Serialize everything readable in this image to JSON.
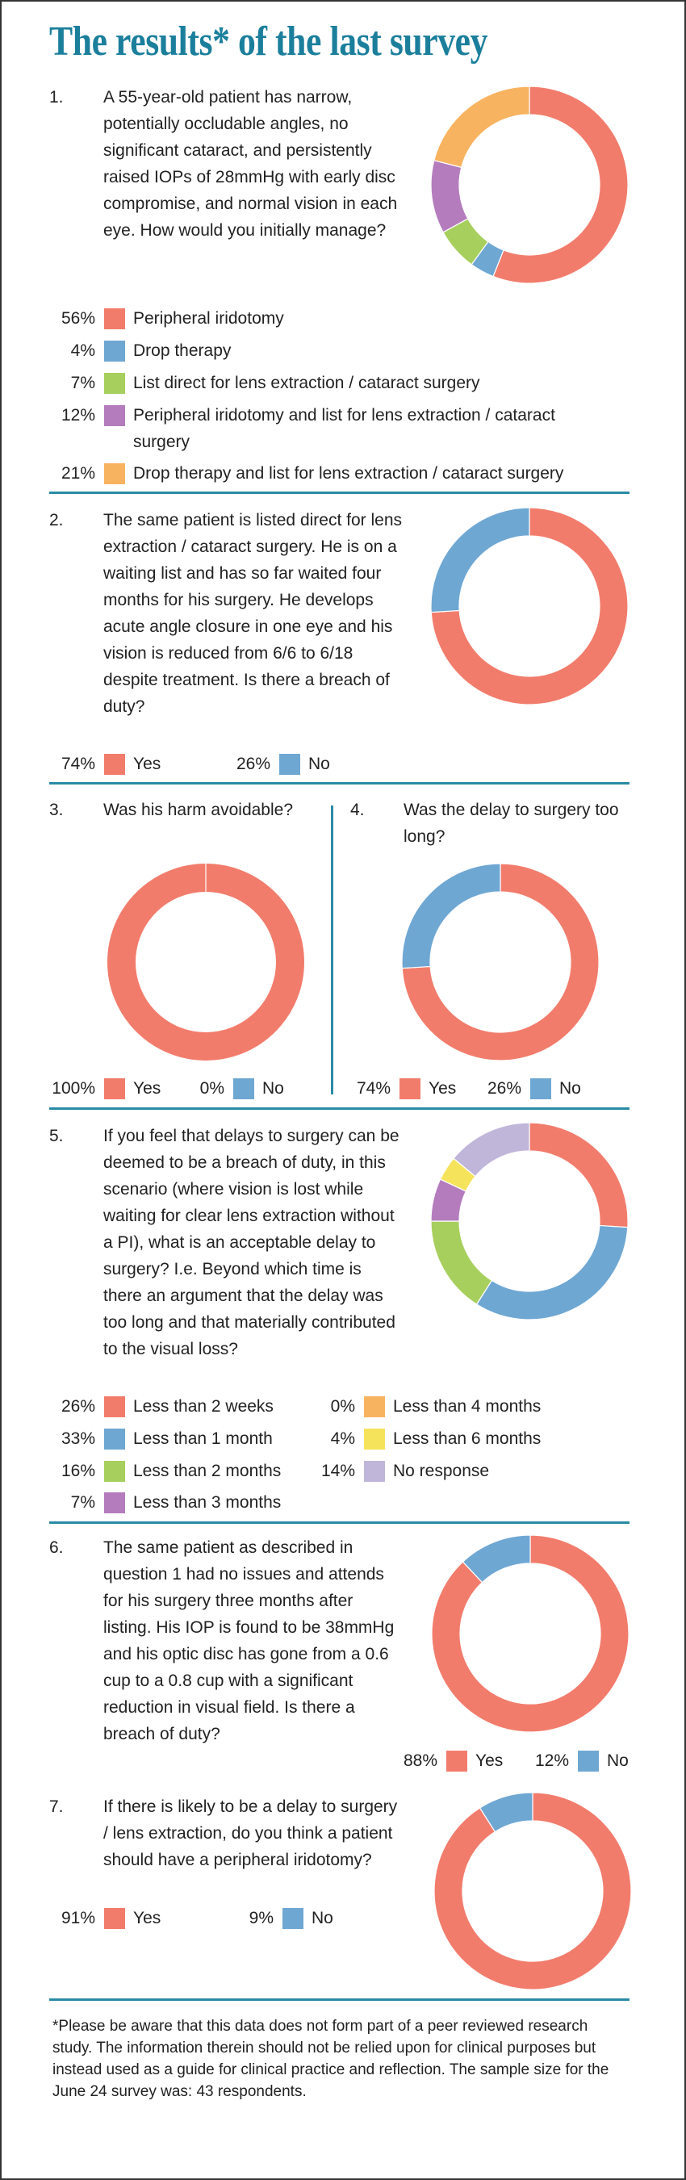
{
  "title": "The results* of the last survey",
  "chart_data": [
    {
      "type": "pie",
      "number": "1.",
      "title": "A 55-year-old patient has narrow, potentially occludable angles, no significant cataract, and persistently raised IOPs of 28mmHg with early disc compromise, and normal vision in each eye. How would you initially manage?",
      "categories": [
        "Peripheral iridotomy",
        "Drop therapy",
        "List direct for lens extraction / cataract surgery",
        "Peripheral iridotomy and list for lens extraction / cataract surgery",
        "Drop therapy and list for lens extraction / cataract surgery"
      ],
      "values": [
        56,
        4,
        7,
        12,
        21
      ],
      "value_labels": [
        "56%",
        "4%",
        "7%",
        "12%",
        "21%"
      ],
      "colors": [
        "#f27c6c",
        "#6fa7d3",
        "#a7cf5e",
        "#b47cbd",
        "#f8b360"
      ]
    },
    {
      "type": "pie",
      "number": "2.",
      "title": "The same patient is listed direct for lens extraction / cataract surgery. He is on a waiting list and has so far waited four months for his surgery. He develops acute angle closure in one eye and his vision is reduced from 6/6 to 6/18 despite treatment. Is there a breach of duty?",
      "categories": [
        "Yes",
        "No"
      ],
      "values": [
        74,
        26
      ],
      "value_labels": [
        "74%",
        "26%"
      ],
      "colors": [
        "#f27c6c",
        "#6fa7d3"
      ]
    },
    {
      "type": "pie",
      "number": "3.",
      "title": "Was his harm avoidable?",
      "categories": [
        "Yes",
        "No"
      ],
      "values": [
        100,
        0
      ],
      "value_labels": [
        "100%",
        "0%"
      ],
      "colors": [
        "#f27c6c",
        "#6fa7d3"
      ]
    },
    {
      "type": "pie",
      "number": "4.",
      "title": "Was the delay to surgery too long?",
      "categories": [
        "Yes",
        "No"
      ],
      "values": [
        74,
        26
      ],
      "value_labels": [
        "74%",
        "26%"
      ],
      "colors": [
        "#f27c6c",
        "#6fa7d3"
      ]
    },
    {
      "type": "pie",
      "number": "5.",
      "title": "If you feel that delays to surgery can be deemed to be a breach of duty, in this scenario (where vision is lost while waiting for clear lens extraction without a PI), what is an acceptable delay to surgery? I.e. Beyond which time is there an argument that the delay was too long and that materially contributed to the visual loss?",
      "categories": [
        "Less than 2 weeks",
        "Less than 1 month",
        "Less than 2 months",
        "Less than 3 months",
        "Less than 4 months",
        "Less than 6 months",
        "No response"
      ],
      "values": [
        26,
        33,
        16,
        7,
        0,
        4,
        14
      ],
      "value_labels": [
        "26%",
        "33%",
        "16%",
        "7%",
        "0%",
        "4%",
        "14%"
      ],
      "colors": [
        "#f27c6c",
        "#6fa7d3",
        "#a7cf5e",
        "#b47cbd",
        "#f8b360",
        "#f6e35c",
        "#c0b6da"
      ]
    },
    {
      "type": "pie",
      "number": "6.",
      "title": "The same patient as described in question 1 had no issues and attends for his surgery three months after listing. His IOP is found to be 38mmHg and his optic disc has gone from a 0.6 cup to a 0.8 cup with a significant reduction in visual field. Is there a breach of duty?",
      "categories": [
        "Yes",
        "No"
      ],
      "values": [
        88,
        12
      ],
      "value_labels": [
        "88%",
        "12%"
      ],
      "colors": [
        "#f27c6c",
        "#6fa7d3"
      ]
    },
    {
      "type": "pie",
      "number": "7.",
      "title": "If there is likely to be a delay to surgery / lens extraction, do you think a patient should have a peripheral iridotomy?",
      "categories": [
        "Yes",
        "No"
      ],
      "values": [
        91,
        9
      ],
      "value_labels": [
        "91%",
        "9%"
      ],
      "colors": [
        "#f27c6c",
        "#6fa7d3"
      ]
    }
  ],
  "footnote": "*Please be aware that this data does not form part of a peer reviewed research study. The information therein should not be relied upon for clinical purposes but instead used as a guide for clinical practice and reflection. The sample size for the June 24 survey was: 43 respondents."
}
